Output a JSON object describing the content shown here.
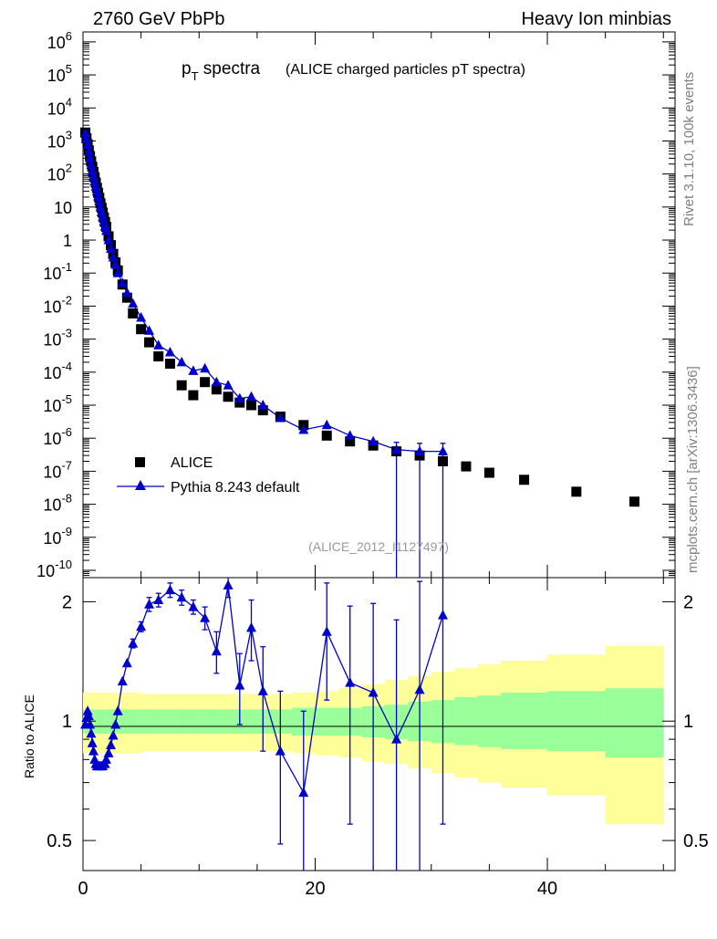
{
  "header": {
    "left": "2760 GeV PbPb",
    "right": "Heavy Ion minbias"
  },
  "side": {
    "rivet": "Rivet 3.1.10,  100k events",
    "mcplots": "mcplots.cern.ch [arXiv:1306.3436]"
  },
  "title": {
    "main": "p",
    "sub": "T",
    "spectra": " spectra",
    "detail": "(ALICE charged particles pT spectra)"
  },
  "analysis_label": "(ALICE_2012_I1127497)",
  "legend": {
    "data": "ALICE",
    "mc": "Pythia 8.243 default"
  },
  "ratio_ylabel": "Ratio to ALICE",
  "colors": {
    "data": "#000000",
    "mc": "#0000cc",
    "band_inner": "#99ff99",
    "band_outer": "#ffff99"
  },
  "chart_data": [
    {
      "type": "scatter",
      "panel": "main",
      "ylog": true,
      "xlim": [
        0,
        51
      ],
      "ylim": [
        6e-11,
        2000000.0
      ],
      "y_tick_labels": [
        "10^-10",
        "10^-9",
        "10^-8",
        "10^-7",
        "10^-6",
        "10^-5",
        "10^-4",
        "10^-3",
        "10^-2",
        "10^-1",
        "1",
        "10",
        "10^2",
        "10^3",
        "10^4",
        "10^5",
        "10^6"
      ],
      "series": [
        {
          "name": "ALICE",
          "marker": "square",
          "x": [
            0.2,
            0.3,
            0.4,
            0.5,
            0.6,
            0.7,
            0.8,
            0.9,
            1.0,
            1.1,
            1.2,
            1.3,
            1.4,
            1.5,
            1.6,
            1.7,
            1.8,
            1.9,
            2.0,
            2.2,
            2.4,
            2.6,
            2.8,
            3.0,
            3.4,
            3.8,
            4.3,
            5.0,
            5.7,
            6.5,
            7.5,
            8.5,
            9.5,
            10.5,
            11.5,
            12.5,
            13.5,
            14.5,
            15.5,
            17.0,
            19.0,
            21.0,
            23.0,
            25.0,
            27.0,
            29.0,
            31.0,
            33.0,
            35.0,
            38.0,
            42.5,
            47.5
          ],
          "y": [
            1800,
            1200,
            800,
            520,
            350,
            240,
            165,
            115,
            80,
            55,
            38,
            27,
            19,
            13,
            9.5,
            6.8,
            4.8,
            3.5,
            2.5,
            1.3,
            0.7,
            0.38,
            0.21,
            0.12,
            0.045,
            0.018,
            0.006,
            0.002,
            0.0008,
            0.0003,
            0.00018,
            4e-05,
            2e-05,
            5e-05,
            3e-05,
            1.8e-05,
            1.2e-05,
            1e-05,
            7e-06,
            4.5e-06,
            2.5e-06,
            1.2e-06,
            8e-07,
            6e-07,
            4e-07,
            3e-07,
            2e-07,
            1.4e-07,
            9e-08,
            5.5e-08,
            2.4e-08,
            1.2e-08
          ]
        },
        {
          "name": "Pythia 8.243 default",
          "marker": "triangle",
          "x": [
            0.2,
            0.3,
            0.4,
            0.5,
            0.6,
            0.7,
            0.8,
            0.9,
            1.0,
            1.1,
            1.2,
            1.3,
            1.4,
            1.5,
            1.6,
            1.7,
            1.8,
            1.9,
            2.0,
            2.2,
            2.4,
            2.6,
            2.8,
            3.0,
            3.4,
            3.8,
            4.3,
            5.0,
            5.7,
            6.5,
            7.5,
            8.5,
            9.5,
            10.5,
            11.5,
            12.5,
            13.5,
            14.5,
            15.5,
            17.0,
            19.0,
            21.0,
            23.0,
            25.0,
            27.0,
            29.0,
            31.0
          ],
          "y": [
            1700,
            1150,
            780,
            480,
            300,
            190,
            125,
            85,
            60,
            42,
            30,
            21,
            15,
            10,
            7,
            5,
            3.6,
            2.6,
            1.9,
            1.0,
            0.55,
            0.3,
            0.18,
            0.1,
            0.05,
            0.025,
            0.012,
            0.0045,
            0.0018,
            0.00065,
            0.0004,
            0.0002,
            0.00011,
            0.00013,
            5e-05,
            4e-05,
            1.6e-05,
            1.8e-05,
            1e-05,
            4.1e-06,
            1.8e-06,
            2.5e-06,
            1.2e-06,
            8e-07,
            4.5e-07,
            4e-07,
            4e-07
          ],
          "err_lo": [
            0,
            0,
            0,
            0,
            0,
            0,
            0,
            0,
            0,
            0,
            0,
            0,
            0,
            0,
            0,
            0,
            0,
            0,
            0,
            0,
            0,
            0,
            0,
            0,
            0,
            0,
            0,
            0,
            0,
            0,
            0,
            0,
            0,
            0,
            0,
            0,
            0,
            0,
            0,
            0,
            0,
            0,
            0,
            0,
            4.5e-07,
            4e-07,
            4e-07
          ],
          "err_hi": [
            0,
            0,
            0,
            0,
            0,
            0,
            0,
            0,
            0,
            0,
            0,
            0,
            0,
            0,
            0,
            0,
            0,
            0,
            0,
            0,
            0,
            0,
            0,
            0,
            0,
            0,
            0,
            0,
            0,
            0,
            0,
            0,
            0,
            0,
            0,
            0,
            0,
            0,
            0,
            0,
            0,
            0,
            0,
            0,
            3e-07,
            3e-07,
            3e-07
          ]
        }
      ]
    },
    {
      "type": "line",
      "panel": "ratio",
      "ylabel": "Ratio to ALICE",
      "ylog": true,
      "xlim": [
        0,
        51
      ],
      "ylim": [
        0.42,
        2.3
      ],
      "x_tick_labels": [
        "0",
        "20",
        "40"
      ],
      "y_tick_labels": [
        "0.5",
        "1",
        "2"
      ],
      "reference_line": 1,
      "bands": {
        "edges": [
          0,
          1,
          2,
          3,
          4,
          5,
          6,
          7,
          8,
          9,
          10,
          11,
          12,
          13,
          14,
          15,
          16,
          18,
          20,
          22,
          24,
          26,
          28,
          30,
          32,
          34,
          36,
          40,
          45,
          50
        ],
        "inner_lo": [
          0.93,
          0.93,
          0.93,
          0.93,
          0.93,
          0.93,
          0.93,
          0.93,
          0.93,
          0.93,
          0.93,
          0.93,
          0.93,
          0.93,
          0.93,
          0.93,
          0.93,
          0.92,
          0.92,
          0.92,
          0.91,
          0.9,
          0.89,
          0.88,
          0.87,
          0.86,
          0.85,
          0.84,
          0.81
        ],
        "inner_hi": [
          1.07,
          1.07,
          1.07,
          1.07,
          1.07,
          1.07,
          1.07,
          1.07,
          1.07,
          1.07,
          1.07,
          1.07,
          1.07,
          1.07,
          1.07,
          1.07,
          1.07,
          1.08,
          1.08,
          1.08,
          1.09,
          1.1,
          1.12,
          1.13,
          1.15,
          1.16,
          1.18,
          1.19,
          1.21
        ],
        "outer_lo": [
          0.83,
          0.83,
          0.83,
          0.83,
          0.83,
          0.84,
          0.84,
          0.84,
          0.84,
          0.84,
          0.84,
          0.84,
          0.84,
          0.84,
          0.84,
          0.84,
          0.84,
          0.83,
          0.82,
          0.81,
          0.79,
          0.78,
          0.76,
          0.74,
          0.72,
          0.7,
          0.68,
          0.65,
          0.55
        ],
        "outer_hi": [
          1.18,
          1.18,
          1.18,
          1.18,
          1.18,
          1.17,
          1.17,
          1.17,
          1.17,
          1.17,
          1.17,
          1.17,
          1.17,
          1.17,
          1.17,
          1.17,
          1.17,
          1.18,
          1.19,
          1.21,
          1.24,
          1.27,
          1.3,
          1.33,
          1.36,
          1.39,
          1.42,
          1.47,
          1.55
        ]
      },
      "series": [
        {
          "name": "Pythia 8.243 default",
          "x": [
            0.2,
            0.3,
            0.4,
            0.5,
            0.6,
            0.7,
            0.8,
            0.9,
            1.0,
            1.1,
            1.2,
            1.3,
            1.4,
            1.5,
            1.6,
            1.7,
            1.8,
            1.9,
            2.0,
            2.2,
            2.4,
            2.6,
            2.8,
            3.0,
            3.4,
            3.8,
            4.3,
            5.0,
            5.7,
            6.5,
            7.5,
            8.5,
            9.5,
            10.5,
            11.5,
            12.5,
            13.5,
            14.5,
            15.5,
            17.0,
            19.0,
            21.0,
            23.0,
            25.0,
            27.0,
            29.0,
            31.0
          ],
          "y": [
            0.98,
            1.02,
            1.06,
            1.03,
            0.98,
            0.93,
            0.88,
            0.84,
            0.8,
            0.78,
            0.77,
            0.77,
            0.77,
            0.77,
            0.77,
            0.77,
            0.78,
            0.78,
            0.8,
            0.83,
            0.87,
            0.92,
            0.98,
            1.06,
            1.26,
            1.4,
            1.57,
            1.73,
            1.97,
            2.02,
            2.14,
            2.05,
            1.94,
            1.82,
            1.5,
            2.2,
            1.23,
            1.72,
            1.19,
            0.84,
            0.66,
            1.68,
            1.25,
            1.18,
            0.9,
            1.2,
            1.85
          ],
          "err": [
            0.02,
            0.02,
            0.02,
            0.02,
            0.02,
            0.02,
            0.02,
            0.02,
            0.02,
            0.02,
            0.02,
            0.02,
            0.02,
            0.02,
            0.02,
            0.02,
            0.02,
            0.02,
            0.02,
            0.02,
            0.02,
            0.02,
            0.02,
            0.02,
            0.03,
            0.03,
            0.04,
            0.05,
            0.08,
            0.08,
            0.09,
            0.09,
            0.08,
            0.12,
            0.18,
            0.15,
            0.25,
            0.3,
            0.35,
            0.35,
            0.4,
            0.55,
            0.7,
            0.8,
            0.9,
            1.05,
            1.3
          ]
        }
      ]
    }
  ]
}
